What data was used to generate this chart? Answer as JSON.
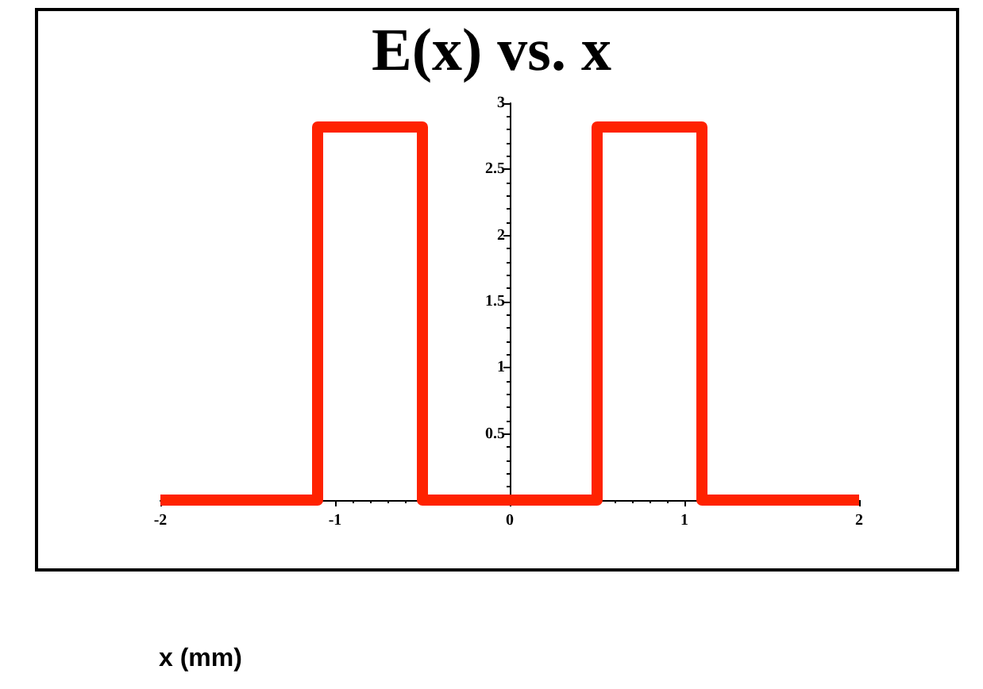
{
  "chart_data": {
    "type": "step",
    "title": "E(x) vs. x",
    "xlabel": "x (mm)",
    "x": [
      -2,
      -1.1,
      -0.5,
      0.5,
      1.1,
      2
    ],
    "series": [
      {
        "color": "#ff2200",
        "values": [
          0,
          2.82,
          0,
          2.82,
          0,
          0
        ]
      }
    ],
    "xlim": [
      -2,
      2
    ],
    "xticks": [
      -2,
      -1,
      0,
      1,
      2
    ],
    "ylim": [
      0,
      3
    ],
    "yticks": [
      0.5,
      1,
      1.5,
      2,
      2.5,
      3
    ],
    "grid": false,
    "marker": "none",
    "line_style": "solid"
  }
}
